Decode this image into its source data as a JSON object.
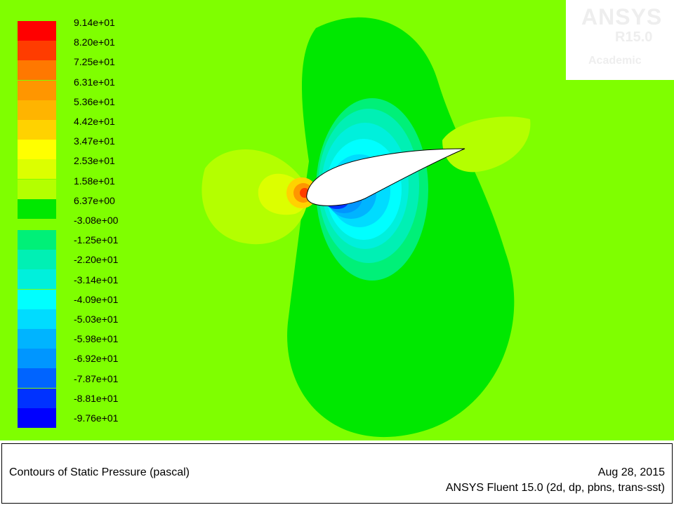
{
  "logo": {
    "brand": "ANSYS",
    "version": "R15.0",
    "edition": "Academic"
  },
  "footer": {
    "title": "Contours of Static Pressure (pascal)",
    "date": "Aug 28, 2015",
    "solver": "ANSYS Fluent 15.0 (2d, dp, pbns, trans-sst)"
  },
  "legend": {
    "ticks": [
      "9.14e+01",
      "8.20e+01",
      "7.25e+01",
      "6.31e+01",
      "5.36e+01",
      "4.42e+01",
      "3.47e+01",
      "2.53e+01",
      "1.58e+01",
      "6.37e+00",
      "-3.08e+00",
      "-1.25e+01",
      "-2.20e+01",
      "-3.14e+01",
      "-4.09e+01",
      "-5.03e+01",
      "-5.98e+01",
      "-6.92e+01",
      "-7.87e+01",
      "-8.81e+01",
      "-9.76e+01"
    ],
    "colors": [
      "#ff0000",
      "#ff3c00",
      "#ff7800",
      "#ff9600",
      "#ffb400",
      "#ffd200",
      "#ffff00",
      "#dcff00",
      "#b4ff00",
      "#00e800",
      "#00f078",
      "#00f0b4",
      "#00f0dc",
      "#00ffff",
      "#00dcff",
      "#00b4ff",
      "#0096ff",
      "#0064ff",
      "#0032ff",
      "#0000ff"
    ]
  }
}
